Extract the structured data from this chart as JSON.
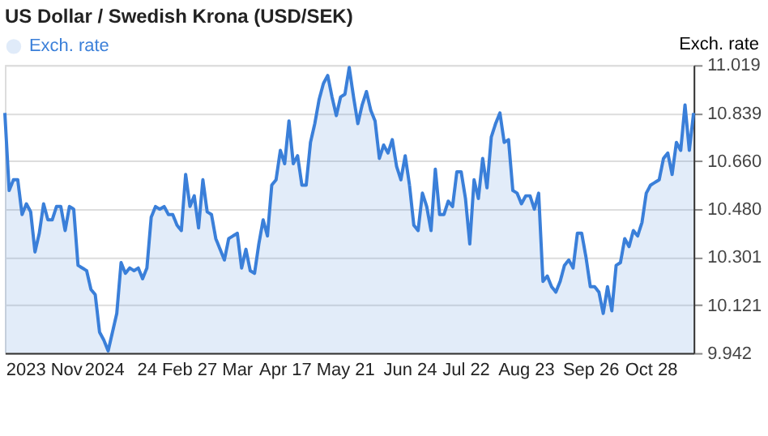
{
  "chart_data": {
    "type": "area",
    "title": "US Dollar / Swedish Krona (USD/SEK)",
    "ylabel": "Exch. rate",
    "categories": [
      null,
      null,
      null,
      null,
      null,
      null,
      null,
      null,
      null,
      "2023 Nov",
      null,
      null,
      null,
      null,
      null,
      null,
      null,
      null,
      null,
      null,
      null,
      null,
      null,
      "2024",
      null,
      null,
      null,
      null,
      null,
      null,
      null,
      null,
      null,
      null,
      null,
      null,
      null,
      "24 Feb",
      null,
      null,
      null,
      null,
      null,
      null,
      null,
      null,
      null,
      null,
      null,
      null,
      null,
      "27 Mar",
      null,
      null,
      null,
      null,
      null,
      null,
      null,
      null,
      null,
      null,
      null,
      null,
      null,
      "Apr 17",
      null,
      null,
      null,
      null,
      null,
      null,
      null,
      null,
      null,
      null,
      null,
      null,
      null,
      "May 21",
      null,
      null,
      null,
      null,
      null,
      null,
      null,
      null,
      null,
      null,
      null,
      null,
      null,
      null,
      "Jun 24",
      null,
      null,
      null,
      null,
      null,
      null,
      null,
      null,
      null,
      null,
      null,
      null,
      "Jul 22",
      null,
      null,
      null,
      null,
      null,
      null,
      null,
      null,
      null,
      null,
      null,
      null,
      null,
      "Aug 23",
      null,
      null,
      null,
      null,
      null,
      null,
      null,
      null,
      null,
      null,
      null,
      null,
      null,
      null,
      "Sep 26",
      null,
      null,
      null,
      null,
      null,
      null,
      null,
      null,
      null,
      null,
      null,
      null,
      null,
      "Oct 28",
      null,
      null,
      null,
      null,
      null,
      null,
      null,
      null,
      null,
      null
    ],
    "series": [
      {
        "name": "Exch. rate",
        "color": "#3a7fd9",
        "values": [
          10.84,
          10.55,
          10.59,
          10.59,
          10.46,
          10.5,
          10.47,
          10.32,
          10.39,
          10.5,
          10.44,
          10.44,
          10.49,
          10.49,
          10.4,
          10.49,
          10.48,
          10.27,
          10.26,
          10.25,
          10.18,
          10.16,
          10.02,
          9.99,
          9.95,
          10.02,
          10.09,
          10.28,
          10.24,
          10.26,
          10.25,
          10.26,
          10.22,
          10.26,
          10.45,
          10.49,
          10.48,
          10.49,
          10.46,
          10.46,
          10.42,
          10.4,
          10.61,
          10.49,
          10.53,
          10.41,
          10.59,
          10.47,
          10.46,
          10.37,
          10.33,
          10.29,
          10.37,
          10.38,
          10.39,
          10.26,
          10.33,
          10.25,
          10.24,
          10.35,
          10.44,
          10.38,
          10.57,
          10.59,
          10.7,
          10.65,
          10.81,
          10.65,
          10.68,
          10.57,
          10.57,
          10.73,
          10.8,
          10.89,
          10.95,
          10.98,
          10.9,
          10.83,
          10.9,
          10.91,
          11.01,
          10.9,
          10.8,
          10.87,
          10.92,
          10.85,
          10.81,
          10.67,
          10.72,
          10.69,
          10.74,
          10.64,
          10.59,
          10.68,
          10.57,
          10.42,
          10.4,
          10.54,
          10.49,
          10.4,
          10.63,
          10.46,
          10.46,
          10.51,
          10.49,
          10.62,
          10.62,
          10.52,
          10.35,
          10.59,
          10.52,
          10.67,
          10.56,
          10.75,
          10.8,
          10.84,
          10.73,
          10.74,
          10.55,
          10.54,
          10.5,
          10.53,
          10.53,
          10.48,
          10.54,
          10.21,
          10.23,
          10.19,
          10.17,
          10.21,
          10.27,
          10.29,
          10.26,
          10.39,
          10.39,
          10.3,
          10.19,
          10.19,
          10.17,
          10.09,
          10.19,
          10.1,
          10.27,
          10.28,
          10.37,
          10.34,
          10.4,
          10.38,
          10.43,
          10.54,
          10.57,
          10.58,
          10.59,
          10.67,
          10.69,
          10.61,
          10.73,
          10.7,
          10.87,
          10.7,
          10.84
        ]
      }
    ],
    "ylim": [
      9.942,
      11.019
    ],
    "yticks": [
      9.942,
      10.121,
      10.301,
      {
        "value": 10.48,
        "label": "10.480"
      },
      {
        "value": 10.66,
        "label": "10.660"
      },
      10.839,
      11.019
    ],
    "grid": "y",
    "legend": "top left",
    "marker": "none",
    "line_style": "solid"
  }
}
